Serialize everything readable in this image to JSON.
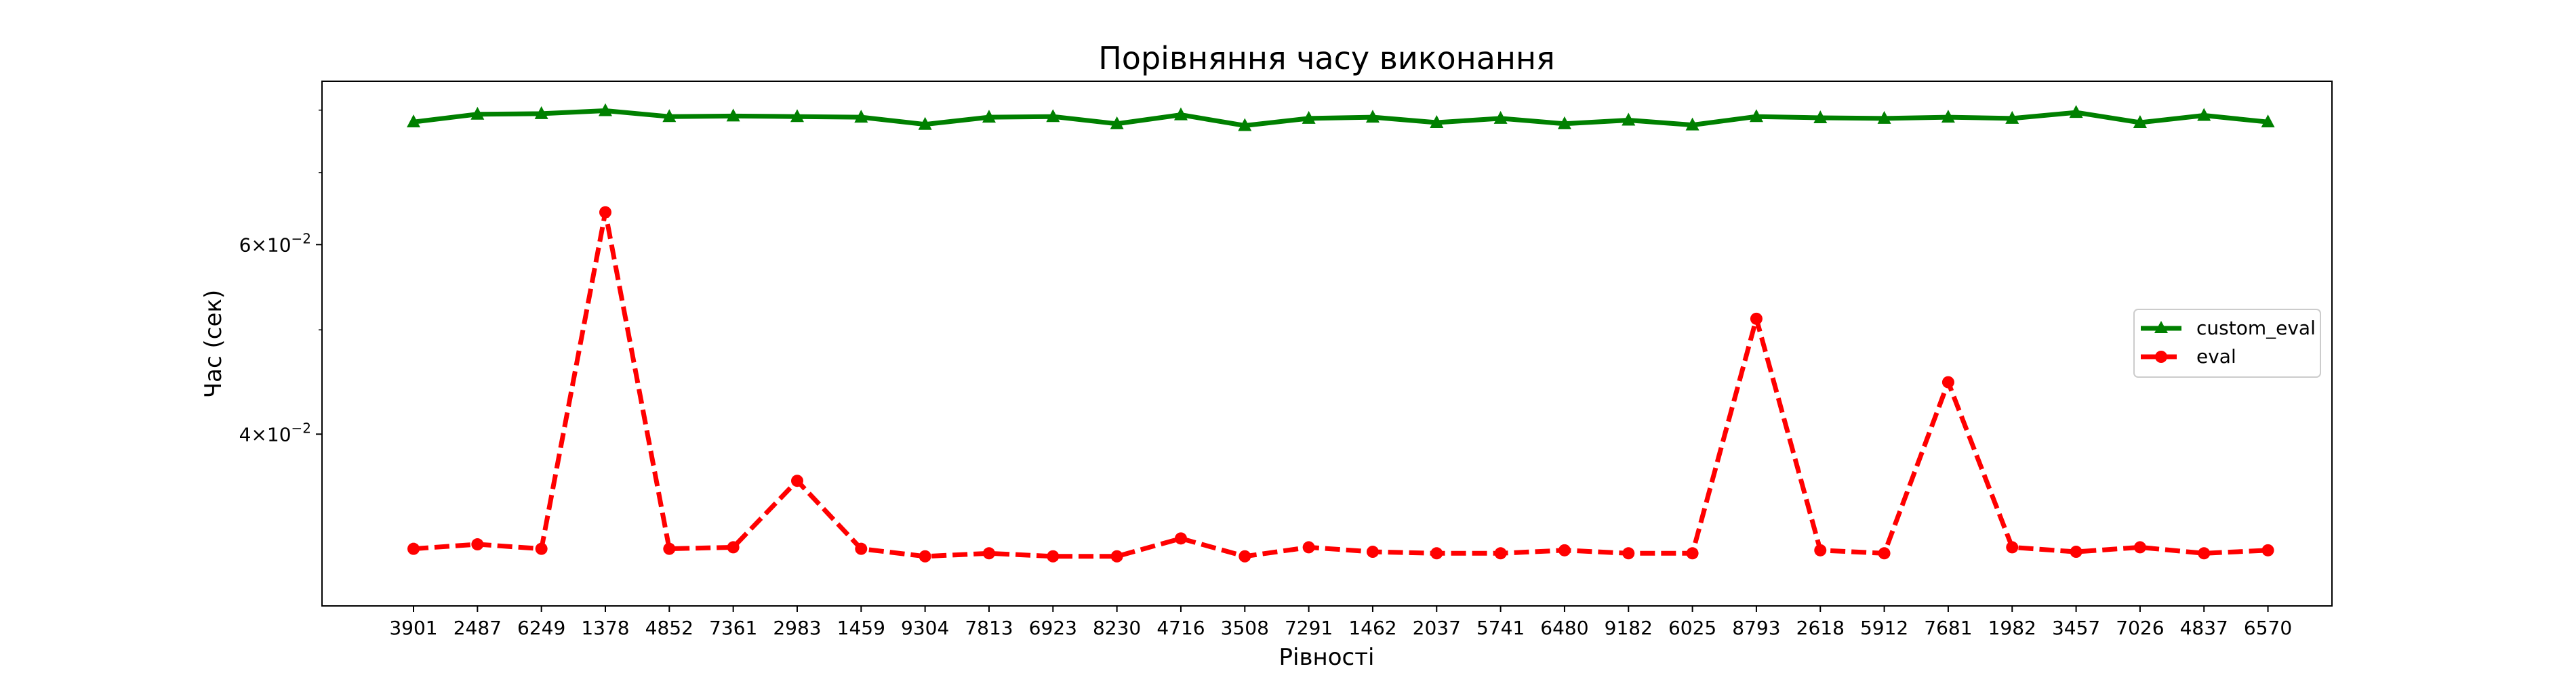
{
  "chart_data": {
    "type": "line",
    "title": "Порівняння часу виконання",
    "xlabel": "Рівності",
    "ylabel": "Час (сек)",
    "yscale": "log",
    "ylim": [
      0.0277,
      0.0851
    ],
    "yticks": [
      {
        "value": 0.06,
        "mantissa": "6",
        "base": "10",
        "exp": "−2"
      },
      {
        "value": 0.04,
        "mantissa": "4",
        "base": "10",
        "exp": "−2"
      }
    ],
    "yminor_ticks": [
      0.05,
      0.07,
      0.08
    ],
    "categories": [
      "3901",
      "2487",
      "6249",
      "1378",
      "4852",
      "7361",
      "2983",
      "1459",
      "9304",
      "7813",
      "6923",
      "8230",
      "4716",
      "3508",
      "7291",
      "1462",
      "2037",
      "5741",
      "6480",
      "9182",
      "6025",
      "8793",
      "2618",
      "5912",
      "7681",
      "1982",
      "3457",
      "7026",
      "4837",
      "6570"
    ],
    "series": [
      {
        "name": "custom_eval",
        "color": "#008000",
        "marker": "triangle",
        "linestyle": "solid",
        "values": [
          0.078,
          0.0793,
          0.0794,
          0.0799,
          0.0789,
          0.079,
          0.0789,
          0.0788,
          0.0776,
          0.0788,
          0.0789,
          0.0777,
          0.0792,
          0.0774,
          0.0786,
          0.0788,
          0.0779,
          0.0786,
          0.0777,
          0.0783,
          0.0775,
          0.0789,
          0.0787,
          0.0786,
          0.0788,
          0.0786,
          0.0796,
          0.0779,
          0.0791,
          0.078
        ]
      },
      {
        "name": "eval",
        "color": "#ff0000",
        "marker": "circle",
        "linestyle": "dashed",
        "values": [
          0.0313,
          0.0316,
          0.0313,
          0.0643,
          0.0313,
          0.0314,
          0.0362,
          0.0313,
          0.0308,
          0.031,
          0.0308,
          0.0308,
          0.032,
          0.0308,
          0.0314,
          0.0311,
          0.031,
          0.031,
          0.0312,
          0.031,
          0.031,
          0.0512,
          0.0312,
          0.031,
          0.0447,
          0.0314,
          0.0311,
          0.0314,
          0.031,
          0.0312
        ]
      }
    ],
    "legend": "center-right",
    "grid": false
  }
}
